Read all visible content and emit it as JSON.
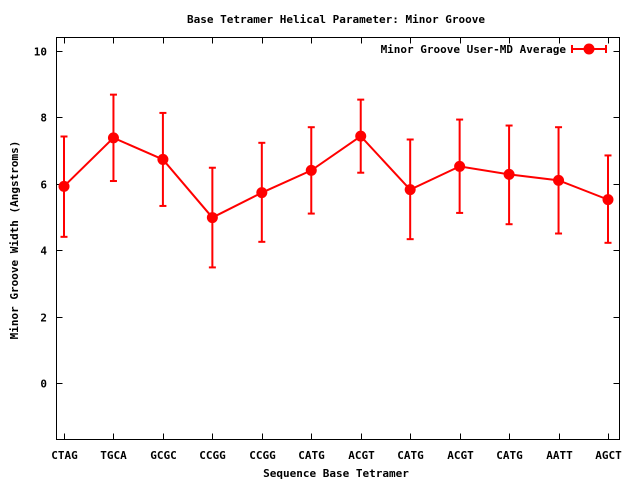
{
  "chart_data": {
    "type": "line",
    "title": "Base Tetramer Helical Parameter: Minor Groove",
    "xlabel": "Sequence Base Tetramer",
    "ylabel": "Minor Groove Width (Angstroms)",
    "ylim": [
      -1.7,
      10.4
    ],
    "yticks": [
      0,
      2,
      4,
      6,
      8,
      10
    ],
    "categories": [
      "CTAG",
      "TGCA",
      "GCGC",
      "CCGG",
      "CCGG",
      "CATG",
      "ACGT",
      "CATG",
      "ACGT",
      "CATG",
      "AATT",
      "AGCT"
    ],
    "series": [
      {
        "name": "Minor Groove User-MD Average",
        "color": "#ff0000",
        "values": [
          5.92,
          7.38,
          6.73,
          4.98,
          5.73,
          6.4,
          7.43,
          5.82,
          6.52,
          6.28,
          6.1,
          5.52
        ],
        "error_low": [
          4.4,
          6.08,
          5.33,
          3.48,
          4.25,
          5.1,
          6.33,
          4.33,
          5.12,
          4.78,
          4.5,
          4.22
        ],
        "error_high": [
          7.42,
          8.68,
          8.13,
          6.48,
          7.23,
          7.7,
          8.53,
          7.33,
          7.93,
          7.75,
          7.7,
          6.85
        ]
      }
    ],
    "legend_position": "top-right",
    "grid": false
  }
}
